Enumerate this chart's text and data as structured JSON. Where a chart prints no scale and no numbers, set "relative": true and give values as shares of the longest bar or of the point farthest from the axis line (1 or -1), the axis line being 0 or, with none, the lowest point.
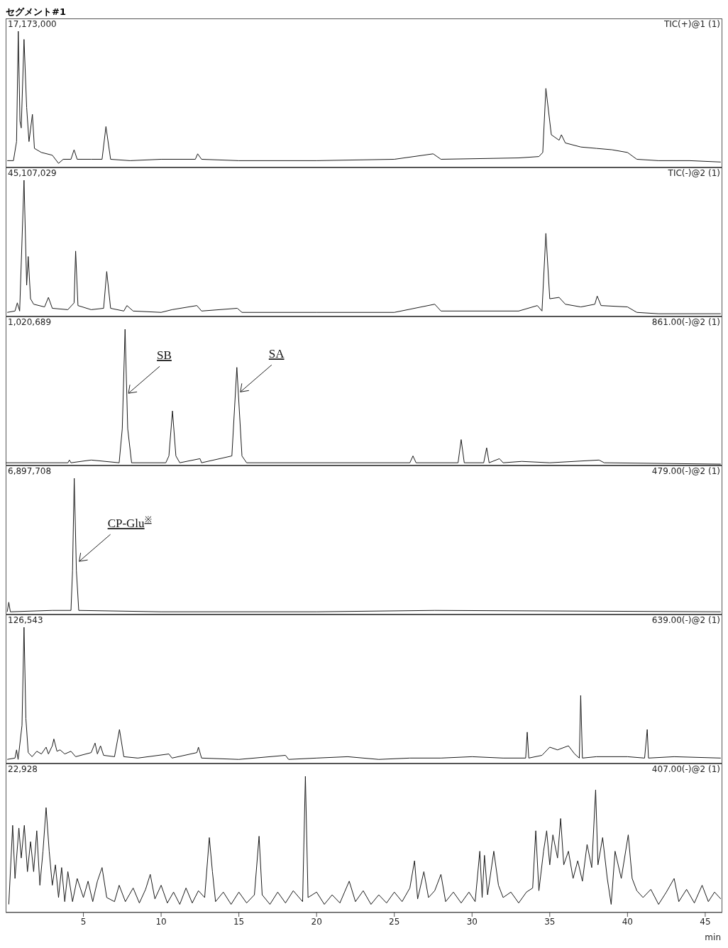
{
  "chart_data": [
    {
      "type": "line",
      "title": "セグメント#1",
      "relative": true,
      "tick_labels": false,
      "xlim": [
        0,
        46.1
      ],
      "color": "#1a1a1a",
      "annotations": [
        "17,173,000",
        "TIC(+)@1 (1)"
      ],
      "x": [
        0.1,
        0.5,
        0.7,
        0.81,
        0.92,
        1.0,
        1.18,
        1.35,
        1.5,
        1.72,
        1.85,
        2.3,
        3.0,
        3.4,
        3.7,
        4.2,
        4.4,
        4.6,
        5.5,
        6.2,
        6.45,
        6.75,
        8,
        10,
        12.2,
        12.35,
        12.6,
        15,
        20,
        25,
        27.5,
        28,
        33,
        34.3,
        34.55,
        34.75,
        35.1,
        35.6,
        35.75,
        36,
        37,
        38,
        39,
        40,
        40.6,
        42,
        44,
        46
      ],
      "values": [
        0.05,
        0.05,
        0.19,
        1,
        0.34,
        0.29,
        0.94,
        0.44,
        0.19,
        0.39,
        0.14,
        0.11,
        0.09,
        0.03,
        0.06,
        0.06,
        0.13,
        0.06,
        0.06,
        0.06,
        0.3,
        0.06,
        0.05,
        0.06,
        0.06,
        0.1,
        0.06,
        0.05,
        0.05,
        0.06,
        0.1,
        0.06,
        0.07,
        0.08,
        0.11,
        0.58,
        0.24,
        0.2,
        0.24,
        0.18,
        0.15,
        0.14,
        0.13,
        0.11,
        0.06,
        0.05,
        0.05,
        0.04
      ]
    },
    {
      "type": "line",
      "relative": true,
      "tick_labels": false,
      "xlim": [
        0,
        46.1
      ],
      "color": "#1a1a1a",
      "annotations": [
        "45,107,029",
        "TIC(-)@2 (1)"
      ],
      "x": [
        0.1,
        0.6,
        0.75,
        0.9,
        1.18,
        1.35,
        1.45,
        1.6,
        1.8,
        2.5,
        2.75,
        3.0,
        4.0,
        4.4,
        4.5,
        4.65,
        5.5,
        6.3,
        6.5,
        6.75,
        7.6,
        7.8,
        8.2,
        10,
        10.7,
        12.3,
        12.6,
        14.9,
        15.2,
        20,
        25,
        27.6,
        28,
        33,
        34.2,
        34.5,
        34.75,
        35.0,
        35.6,
        36,
        37,
        37.9,
        38.05,
        38.3,
        40,
        40.6,
        42,
        46
      ],
      "values": [
        0.03,
        0.04,
        0.1,
        0.04,
        1,
        0.23,
        0.44,
        0.13,
        0.09,
        0.07,
        0.14,
        0.06,
        0.05,
        0.1,
        0.48,
        0.08,
        0.05,
        0.06,
        0.33,
        0.06,
        0.04,
        0.08,
        0.04,
        0.03,
        0.05,
        0.08,
        0.04,
        0.06,
        0.03,
        0.03,
        0.03,
        0.09,
        0.04,
        0.04,
        0.08,
        0.04,
        0.61,
        0.13,
        0.14,
        0.09,
        0.07,
        0.09,
        0.15,
        0.08,
        0.07,
        0.03,
        0.02,
        0.02
      ]
    },
    {
      "type": "line",
      "relative": true,
      "tick_labels": false,
      "xlim": [
        0,
        46.1
      ],
      "color": "#1a1a1a",
      "annotations": [
        "1,020,689",
        "861.00(-)@2 (1)",
        {
          "text": "SB",
          "x": 7.9,
          "y": 0.53
        },
        {
          "text": "SA",
          "x": 15.1,
          "y": 0.54
        }
      ],
      "x": [
        0,
        1.0,
        4.0,
        4.1,
        4.2,
        5.5,
        7.3,
        7.5,
        7.68,
        7.85,
        8.1,
        10.3,
        10.5,
        10.73,
        10.95,
        11.2,
        12.5,
        12.6,
        14.55,
        14.87,
        15.2,
        15.5,
        26.0,
        26.2,
        26.4,
        29.1,
        29.3,
        29.5,
        30.75,
        30.94,
        31.1,
        31.76,
        32,
        33.2,
        35,
        38.17,
        38.5,
        46
      ],
      "values": [
        0.02,
        0.02,
        0.02,
        0.04,
        0.02,
        0.04,
        0.02,
        0.27,
        1,
        0.27,
        0.02,
        0.02,
        0.07,
        0.4,
        0.07,
        0.02,
        0.05,
        0.02,
        0.07,
        0.72,
        0.07,
        0.02,
        0.02,
        0.07,
        0.02,
        0.02,
        0.19,
        0.02,
        0.02,
        0.13,
        0.02,
        0.05,
        0.02,
        0.03,
        0.02,
        0.04,
        0.02,
        0.01
      ]
    },
    {
      "type": "line",
      "relative": true,
      "tick_labels": false,
      "xlim": [
        0,
        46.1
      ],
      "color": "#1a1a1a",
      "annotations": [
        "6,897,708",
        "479.00(-)@2 (1)",
        {
          "text": "CP-Glu$^{※}$",
          "x": 4.73,
          "y": 0.39
        }
      ],
      "x": [
        0.1,
        0.2,
        0.3,
        3.0,
        4.2,
        4.3,
        4.41,
        4.55,
        4.7,
        10,
        20,
        27.6,
        46
      ],
      "values": [
        0.02,
        0.09,
        0.02,
        0.03,
        0.03,
        0.32,
        1,
        0.32,
        0.03,
        0.02,
        0.02,
        0.03,
        0.02
      ]
    },
    {
      "type": "line",
      "relative": true,
      "tick_labels": false,
      "xlim": [
        0,
        46.1
      ],
      "color": "#1a1a1a",
      "annotations": [
        "126,543",
        "639.00(-)@2 (1)"
      ],
      "x": [
        0.1,
        0.6,
        0.7,
        0.8,
        1.05,
        1.18,
        1.3,
        1.45,
        1.7,
        2.0,
        2.3,
        2.6,
        2.75,
        3.0,
        3.1,
        3.3,
        3.5,
        3.8,
        4.2,
        4.5,
        5.5,
        5.75,
        5.9,
        6.1,
        6.3,
        7.0,
        7.32,
        7.6,
        8.5,
        10.5,
        10.7,
        12.3,
        12.4,
        12.6,
        15,
        18,
        18.2,
        20,
        22,
        24,
        26,
        28,
        30,
        32,
        33.45,
        33.55,
        33.65,
        34.5,
        35.0,
        35.5,
        36.2,
        36.6,
        36.9,
        36.99,
        37.1,
        38,
        40,
        41.1,
        41.27,
        41.35,
        43,
        46
      ],
      "values": [
        0.03,
        0.04,
        0.1,
        0.03,
        0.28,
        1,
        0.33,
        0.08,
        0.05,
        0.09,
        0.07,
        0.12,
        0.07,
        0.13,
        0.18,
        0.09,
        0.1,
        0.07,
        0.09,
        0.05,
        0.08,
        0.15,
        0.07,
        0.13,
        0.06,
        0.05,
        0.25,
        0.05,
        0.04,
        0.07,
        0.04,
        0.08,
        0.12,
        0.04,
        0.03,
        0.06,
        0.03,
        0.04,
        0.05,
        0.03,
        0.04,
        0.04,
        0.05,
        0.04,
        0.04,
        0.23,
        0.04,
        0.06,
        0.12,
        0.1,
        0.13,
        0.07,
        0.04,
        0.5,
        0.04,
        0.05,
        0.05,
        0.04,
        0.25,
        0.04,
        0.05,
        0.04
      ]
    },
    {
      "type": "line",
      "relative": true,
      "xlim": [
        0,
        46.1
      ],
      "xticks": [
        5,
        10,
        15,
        20,
        25,
        30,
        35,
        40,
        45
      ],
      "xlabel": "min",
      "color": "#1a1a1a",
      "annotations": [
        "22,928",
        "407.00(-)@2 (1)"
      ],
      "x": [
        0.2,
        0.45,
        0.6,
        0.85,
        1.0,
        1.2,
        1.4,
        1.6,
        1.8,
        2.0,
        2.2,
        2.4,
        2.6,
        2.8,
        3.0,
        3.2,
        3.4,
        3.6,
        3.8,
        4.0,
        4.3,
        4.6,
        5.0,
        5.3,
        5.6,
        5.9,
        6.2,
        6.5,
        7.0,
        7.3,
        7.7,
        8.2,
        8.6,
        9.0,
        9.3,
        9.6,
        10.0,
        10.4,
        10.8,
        11.2,
        11.6,
        12.0,
        12.4,
        12.8,
        13.1,
        13.3,
        13.5,
        14.0,
        14.5,
        15.0,
        15.5,
        16.0,
        16.3,
        16.5,
        17.0,
        17.5,
        18.0,
        18.5,
        19.1,
        19.28,
        19.45,
        20.0,
        20.5,
        21.0,
        21.5,
        22.1,
        22.5,
        23.0,
        23.5,
        24.0,
        24.5,
        25.0,
        25.5,
        26.0,
        26.3,
        26.5,
        26.9,
        27.2,
        27.6,
        28.0,
        28.3,
        28.8,
        29.3,
        29.8,
        30.2,
        30.5,
        30.65,
        30.8,
        31.0,
        31.4,
        31.7,
        32.0,
        32.5,
        33.0,
        33.5,
        33.9,
        34.1,
        34.3,
        34.6,
        34.8,
        35.0,
        35.2,
        35.5,
        35.7,
        35.9,
        36.2,
        36.5,
        36.8,
        37.1,
        37.4,
        37.7,
        37.95,
        38.1,
        38.4,
        38.7,
        38.95,
        39.2,
        39.6,
        40.05,
        40.3,
        40.6,
        41.0,
        41.5,
        42.0,
        42.5,
        43.0,
        43.3,
        43.8,
        44.3,
        44.8,
        45.2,
        45.6,
        46.0
      ],
      "values": [
        0.06,
        0.64,
        0.25,
        0.62,
        0.4,
        0.64,
        0.3,
        0.52,
        0.3,
        0.6,
        0.2,
        0.45,
        0.77,
        0.45,
        0.2,
        0.35,
        0.11,
        0.33,
        0.08,
        0.3,
        0.08,
        0.25,
        0.11,
        0.23,
        0.08,
        0.23,
        0.33,
        0.11,
        0.08,
        0.2,
        0.08,
        0.18,
        0.07,
        0.17,
        0.28,
        0.1,
        0.2,
        0.07,
        0.15,
        0.06,
        0.18,
        0.07,
        0.16,
        0.11,
        0.55,
        0.3,
        0.08,
        0.15,
        0.06,
        0.15,
        0.07,
        0.13,
        0.56,
        0.13,
        0.06,
        0.15,
        0.07,
        0.16,
        0.08,
        1,
        0.11,
        0.15,
        0.06,
        0.13,
        0.07,
        0.23,
        0.08,
        0.16,
        0.06,
        0.13,
        0.07,
        0.15,
        0.08,
        0.18,
        0.38,
        0.1,
        0.3,
        0.11,
        0.16,
        0.28,
        0.08,
        0.15,
        0.07,
        0.15,
        0.08,
        0.45,
        0.11,
        0.42,
        0.13,
        0.45,
        0.2,
        0.11,
        0.15,
        0.07,
        0.15,
        0.18,
        0.6,
        0.16,
        0.45,
        0.6,
        0.35,
        0.57,
        0.4,
        0.69,
        0.35,
        0.45,
        0.25,
        0.38,
        0.23,
        0.5,
        0.33,
        0.9,
        0.35,
        0.55,
        0.25,
        0.06,
        0.45,
        0.25,
        0.57,
        0.25,
        0.16,
        0.11,
        0.17,
        0.06,
        0.15,
        0.25,
        0.08,
        0.17,
        0.07,
        0.2,
        0.08,
        0.15,
        0.1
      ]
    }
  ]
}
